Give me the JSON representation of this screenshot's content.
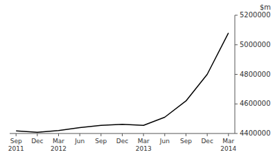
{
  "chart_data": {
    "type": "line",
    "y_label": "$m",
    "categories": [
      "Sep\n2011",
      "Dec",
      "Mar\n2012",
      "Jun",
      "Sep",
      "Dec",
      "Mar\n2013",
      "Jun",
      "Sep",
      "Dec",
      "Mar\n2014"
    ],
    "values": [
      4418000,
      4408000,
      4420000,
      4440000,
      4455000,
      4462000,
      4455000,
      4510000,
      4620000,
      4800000,
      5080000
    ],
    "color": "#000000",
    "ylim": [
      4400000,
      5200000
    ],
    "yticks": [
      4400000,
      4600000,
      4800000,
      5000000,
      5200000
    ],
    "grid": false
  }
}
